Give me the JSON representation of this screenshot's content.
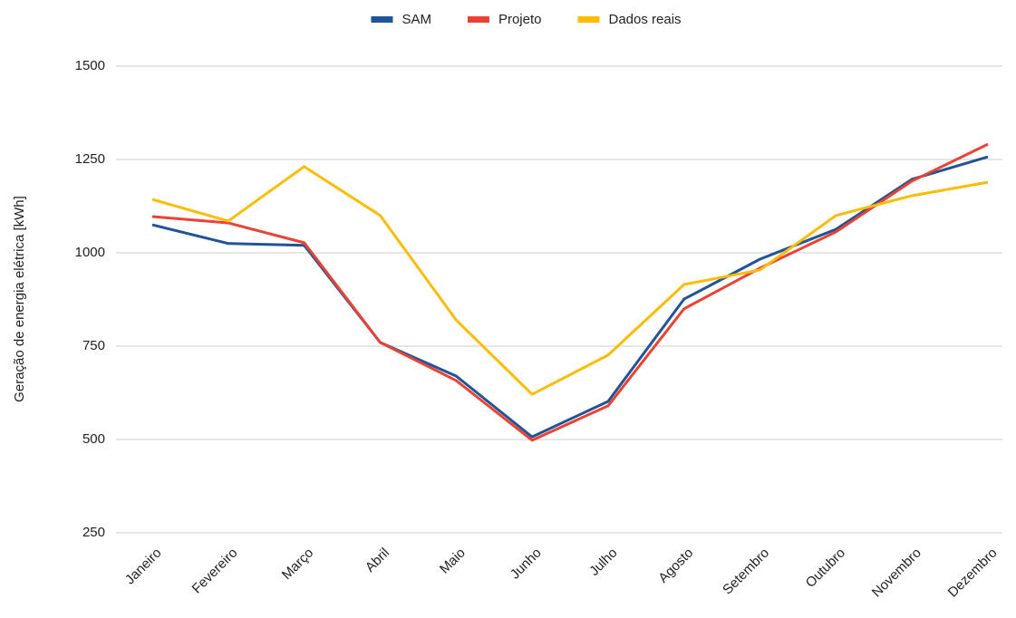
{
  "chart_data": {
    "type": "line",
    "y_label": "Geração de energia elétrica [kWh]",
    "categories": [
      "Janeiro",
      "Fevereiro",
      "Março",
      "Abril",
      "Maio",
      "Junho",
      "Julho",
      "Agosto",
      "Setembro",
      "Outubro",
      "Novembro",
      "Dezembro"
    ],
    "series": [
      {
        "name": "SAM",
        "color": "#1f5597",
        "values": [
          1075,
          1025,
          1020,
          760,
          670,
          507,
          602,
          876,
          983,
          1063,
          1197,
          1257
        ]
      },
      {
        "name": "Projeto",
        "color": "#ea4335",
        "values": [
          1097,
          1080,
          1027,
          760,
          658,
          498,
          590,
          850,
          959,
          1056,
          1192,
          1291
        ]
      },
      {
        "name": "Dados reais",
        "color": "#fbbc04",
        "values": [
          1143,
          1085,
          1231,
          1100,
          820,
          621,
          726,
          915,
          954,
          1100,
          1153,
          1189
        ]
      }
    ],
    "ylim": [
      250,
      1500
    ],
    "yticks": [
      250,
      500,
      750,
      1000,
      1250,
      1500
    ],
    "grid": true,
    "legend": "top"
  }
}
